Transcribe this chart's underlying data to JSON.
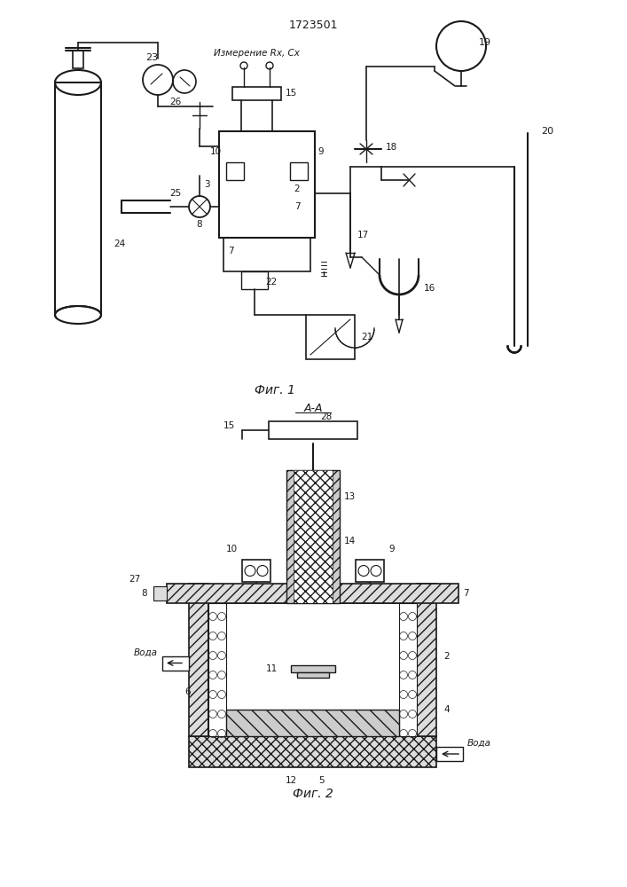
{
  "title": "1723501",
  "fig1_caption": "Фиг. 1",
  "fig2_caption": "Фиг. 2",
  "section_label": "А-А",
  "measurement_label": "Измерение Rх, Cх",
  "water_label": "Вода",
  "bg_color": "#ffffff",
  "line_color": "#1a1a1a",
  "fig_width": 7.07,
  "fig_height": 10.0
}
